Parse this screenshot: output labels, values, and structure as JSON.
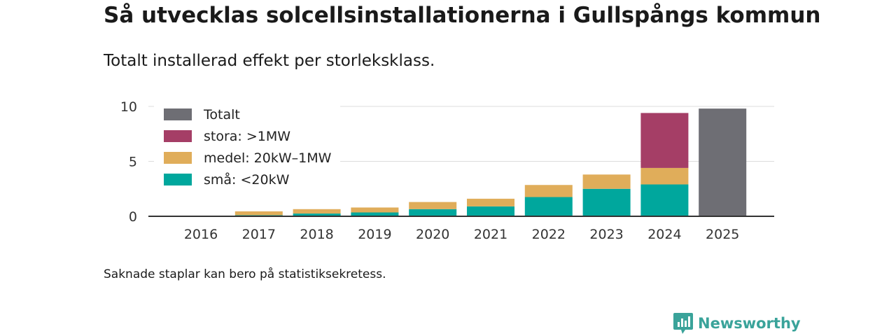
{
  "title": "Så utvecklas solcellsinstallationerna i Gullspångs kommun",
  "subtitle": "Totalt installerad effekt per storleksklass.",
  "footnote": "Saknade staplar kan bero på statistiksekretess.",
  "brand": {
    "name": "Newsworthy",
    "color": "#3aa39a"
  },
  "colors": {
    "total": "#6e6e74",
    "large": "#a53e66",
    "medium": "#e0ad5a",
    "small": "#00a79d",
    "grid": "#dddddd",
    "axis": "#333333"
  },
  "chart_data": {
    "type": "bar",
    "stacked": true,
    "categories": [
      "2016",
      "2017",
      "2018",
      "2019",
      "2020",
      "2021",
      "2022",
      "2023",
      "2024",
      "2025"
    ],
    "series": [
      {
        "name": "små: <20kW",
        "key": "small",
        "values": [
          0.02,
          0.1,
          0.25,
          0.35,
          0.65,
          0.9,
          1.75,
          2.5,
          2.9,
          0
        ]
      },
      {
        "name": "medel: 20kW–1MW",
        "key": "medium",
        "values": [
          0.03,
          0.35,
          0.4,
          0.45,
          0.65,
          0.7,
          1.1,
          1.3,
          1.5,
          0
        ]
      },
      {
        "name": "stora: >1MW",
        "key": "large",
        "values": [
          0,
          0,
          0,
          0,
          0,
          0,
          0,
          0,
          5.0,
          0
        ]
      },
      {
        "name": "Totalt",
        "key": "total",
        "values": [
          0,
          0,
          0,
          0,
          0,
          0,
          0,
          0,
          0,
          9.8
        ]
      }
    ],
    "legend_order": [
      "total",
      "large",
      "medium",
      "small"
    ],
    "legend_position": "top-left",
    "yticks": [
      0,
      5,
      10
    ],
    "ylim": [
      0,
      10.7
    ],
    "xlabel": "",
    "ylabel": ""
  }
}
